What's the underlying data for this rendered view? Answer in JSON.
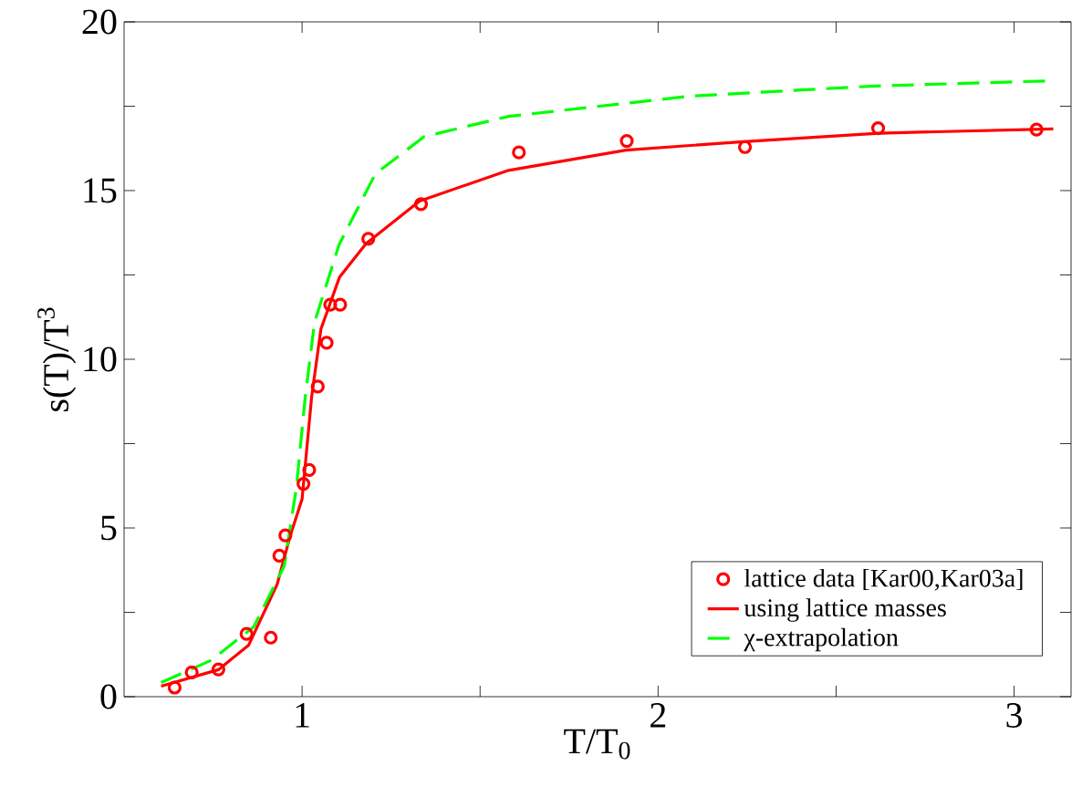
{
  "chart_data": {
    "type": "line",
    "xlabel": "T/T$_{0}$",
    "ylabel": "s(T)/T$^{3}$",
    "xlim": [
      0.5,
      3.16
    ],
    "ylim": [
      0,
      20
    ],
    "xticks": [
      1,
      {
        "value": 1.5,
        "label": null
      },
      2,
      {
        "value": 2.5,
        "label": null
      },
      3
    ],
    "yticks": [
      0,
      {
        "value": 2.5,
        "label": null
      },
      5,
      {
        "value": 7.5,
        "label": null
      },
      10,
      {
        "value": 12.5,
        "label": null
      },
      15,
      {
        "value": 17.5,
        "label": null
      },
      20
    ],
    "grid": false,
    "legend": "bottom right",
    "series": [
      {
        "name": "lattice data [Kar00,Kar03a]",
        "type": "scatter",
        "marker": "circle",
        "color": "#ff0000",
        "x": [
          0.642,
          0.69,
          0.765,
          0.844,
          0.912,
          0.936,
          0.953,
          1.004,
          1.02,
          1.044,
          1.069,
          1.079,
          1.107,
          1.186,
          1.334,
          1.609,
          1.912,
          2.244,
          2.618,
          3.063
        ],
        "values": [
          0.27,
          0.72,
          0.81,
          1.86,
          1.75,
          4.18,
          4.78,
          6.31,
          6.72,
          9.19,
          10.49,
          11.62,
          11.62,
          13.57,
          14.6,
          16.13,
          16.47,
          16.29,
          16.85,
          16.81
        ]
      },
      {
        "name": "using lattice masses",
        "line_style": "solid",
        "color": "#ff0000",
        "x": [
          0.604,
          0.765,
          0.85,
          0.93,
          0.967,
          1.0,
          1.027,
          1.053,
          1.105,
          1.18,
          1.33,
          1.58,
          1.91,
          2.24,
          2.62,
          3.11
        ],
        "values": [
          0.31,
          0.8,
          1.53,
          3.33,
          4.78,
          5.86,
          8.9,
          10.9,
          12.43,
          13.43,
          14.69,
          15.6,
          16.2,
          16.45,
          16.7,
          16.83
        ]
      },
      {
        "name": "χ-extrapolation",
        "line_style": "dashed",
        "color": "#00ff00",
        "x": [
          0.604,
          0.745,
          0.864,
          0.95,
          0.984,
          1.009,
          1.035,
          1.104,
          1.206,
          1.343,
          1.58,
          2.09,
          2.61,
          3.09
        ],
        "values": [
          0.42,
          1.08,
          2.07,
          3.88,
          6.2,
          8.9,
          11.1,
          13.4,
          15.5,
          16.6,
          17.2,
          17.8,
          18.1,
          18.25
        ]
      }
    ]
  }
}
